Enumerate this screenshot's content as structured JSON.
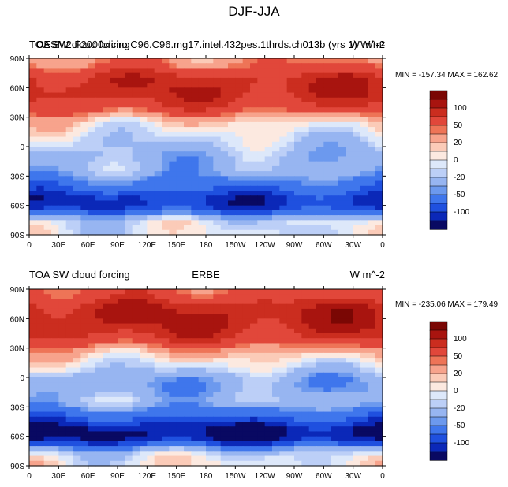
{
  "figure_title": "DJF-JJA",
  "chart_data": [
    {
      "type": "heatmap",
      "panel": "top",
      "title_left_overlap": [
        "TOA SW cloud forcing",
        "CESM2.F2000climo.C96.C96.mg17.intel.432pes.1thrds.ch013b (yrs 1)"
      ],
      "title_center": "",
      "title_right_overlap": [
        "W m^-2",
        "W/m²"
      ],
      "stats": "MIN = -157.34 MAX = 162.62",
      "min": -157.34,
      "max": 162.62,
      "xlabel": "",
      "ylabel": "",
      "x_ticks": [
        "0",
        "30E",
        "60E",
        "90E",
        "120E",
        "150E",
        "180",
        "150W",
        "120W",
        "90W",
        "60W",
        "30W",
        "0"
      ],
      "y_ticks": [
        "90N",
        "60N",
        "30N",
        "0",
        "30S",
        "60S",
        "90S"
      ],
      "xlim": [
        0,
        360
      ],
      "ylim": [
        -90,
        90
      ],
      "colorbar_labels": [
        "100",
        "50",
        "20",
        "0",
        "-20",
        "-50",
        "-100"
      ],
      "contour_levels": [
        -120,
        -100,
        -80,
        -50,
        -40,
        -20,
        -10,
        0,
        10,
        20,
        40,
        50,
        80,
        100,
        120
      ],
      "pattern": [
        {
          "lat": 85,
          "value": 40
        },
        {
          "lat": 70,
          "value": 90
        },
        {
          "lat": 55,
          "value": 95
        },
        {
          "lat": 40,
          "value": 70
        },
        {
          "lat": 25,
          "value": 10
        },
        {
          "lat": 10,
          "value": -10
        },
        {
          "lat": 0,
          "value": -20
        },
        {
          "lat": -10,
          "value": -30
        },
        {
          "lat": -25,
          "value": -30
        },
        {
          "lat": -40,
          "value": -70
        },
        {
          "lat": -55,
          "value": -110
        },
        {
          "lat": -65,
          "value": -90
        },
        {
          "lat": -75,
          "value": -10
        },
        {
          "lat": -85,
          "value": -5
        }
      ]
    },
    {
      "type": "heatmap",
      "panel": "bottom",
      "title_left": "TOA SW cloud forcing",
      "title_center": "ERBE",
      "title_right": "W m^-2",
      "stats": "MIN = -235.06 MAX = 179.49",
      "min": -235.06,
      "max": 179.49,
      "xlabel": "",
      "ylabel": "",
      "x_ticks": [
        "0",
        "30E",
        "60E",
        "90E",
        "120E",
        "150E",
        "180",
        "150W",
        "120W",
        "90W",
        "60W",
        "30W",
        "0"
      ],
      "y_ticks": [
        "90N",
        "60N",
        "30N",
        "0",
        "30S",
        "60S",
        "90S"
      ],
      "xlim": [
        0,
        360
      ],
      "ylim": [
        -90,
        90
      ],
      "colorbar_labels": [
        "100",
        "50",
        "20",
        "0",
        "-20",
        "-50",
        "-100"
      ],
      "contour_levels": [
        -120,
        -100,
        -80,
        -50,
        -40,
        -20,
        -10,
        0,
        10,
        20,
        40,
        50,
        80,
        100,
        120
      ],
      "pattern": [
        {
          "lat": 85,
          "value": 60
        },
        {
          "lat": 70,
          "value": 100
        },
        {
          "lat": 55,
          "value": 100
        },
        {
          "lat": 40,
          "value": 80
        },
        {
          "lat": 25,
          "value": 20
        },
        {
          "lat": 10,
          "value": -10
        },
        {
          "lat": 0,
          "value": -35
        },
        {
          "lat": -10,
          "value": -40
        },
        {
          "lat": -25,
          "value": -25
        },
        {
          "lat": -40,
          "value": -80
        },
        {
          "lat": -55,
          "value": -130
        },
        {
          "lat": -65,
          "value": -110
        },
        {
          "lat": -75,
          "value": -20
        },
        {
          "lat": -85,
          "value": 0
        }
      ]
    }
  ],
  "colorbar": {
    "colors": [
      "#090962",
      "#0b28b8",
      "#1f50df",
      "#3f76ec",
      "#6c99ee",
      "#97b5f1",
      "#bccff7",
      "#dde8fa",
      "#fce9e0",
      "#fbcbb8",
      "#f7a38c",
      "#ee7457",
      "#e1473a",
      "#cb2d1f",
      "#a8140f",
      "#7a0704"
    ],
    "levels": [
      -130,
      -120,
      -100,
      -80,
      -50,
      -40,
      -20,
      -10,
      0,
      10,
      20,
      40,
      50,
      80,
      100,
      120
    ]
  }
}
